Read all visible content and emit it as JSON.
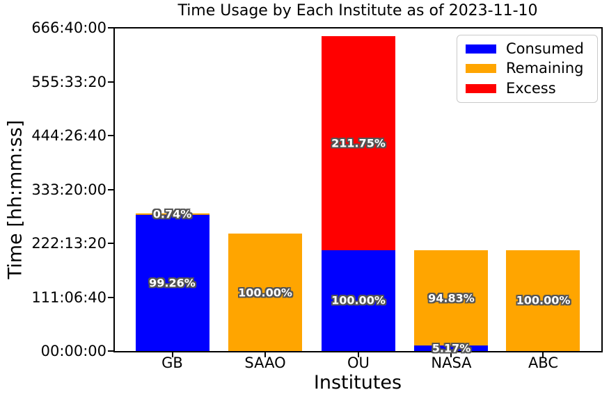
{
  "chart_data": {
    "type": "bar",
    "stacked": true,
    "title": "Time Usage by Each Institute as of 2023-11-10",
    "xlabel": "Institutes",
    "ylabel": "Time [hh:mm:ss]",
    "categories": [
      "GB",
      "SAAO",
      "OU",
      "NASA",
      "ABC"
    ],
    "unit": "seconds",
    "ylim": [
      0,
      2400000
    ],
    "ytick_labels": [
      "00:00:00",
      "111:06:40",
      "222:13:20",
      "333:20:00",
      "444:26:40",
      "555:33:20",
      "666:40:00"
    ],
    "ytick_step_seconds": 400000,
    "grid": false,
    "legend_position": "upper right",
    "series": [
      {
        "name": "Consumed",
        "color": "#0000ff",
        "values": [
          1013048,
          0,
          750000,
          38775,
          0
        ]
      },
      {
        "name": "Remaining",
        "color": "#ffa500",
        "values": [
          7552,
          872000,
          0,
          711225,
          750000
        ]
      },
      {
        "name": "Excess",
        "color": "#ff0000",
        "values": [
          0,
          0,
          1588125,
          0,
          0
        ]
      }
    ],
    "bar_labels": [
      {
        "category": "GB",
        "series": "Remaining",
        "text": "0.74%"
      },
      {
        "category": "GB",
        "series": "Consumed",
        "text": "99.26%"
      },
      {
        "category": "SAAO",
        "series": "Remaining",
        "text": "100.00%"
      },
      {
        "category": "OU",
        "series": "Excess",
        "text": "211.75%"
      },
      {
        "category": "OU",
        "series": "Consumed",
        "text": "100.00%"
      },
      {
        "category": "NASA",
        "series": "Remaining",
        "text": "94.83%"
      },
      {
        "category": "NASA",
        "series": "Consumed",
        "text": "5.17%"
      },
      {
        "category": "ABC",
        "series": "Remaining",
        "text": "100.00%"
      }
    ],
    "label_style": {
      "text_color": "#ffffff",
      "outline_color": "#555555",
      "bold": true
    },
    "axis_color": "#000000",
    "background_color": "#ffffff"
  }
}
